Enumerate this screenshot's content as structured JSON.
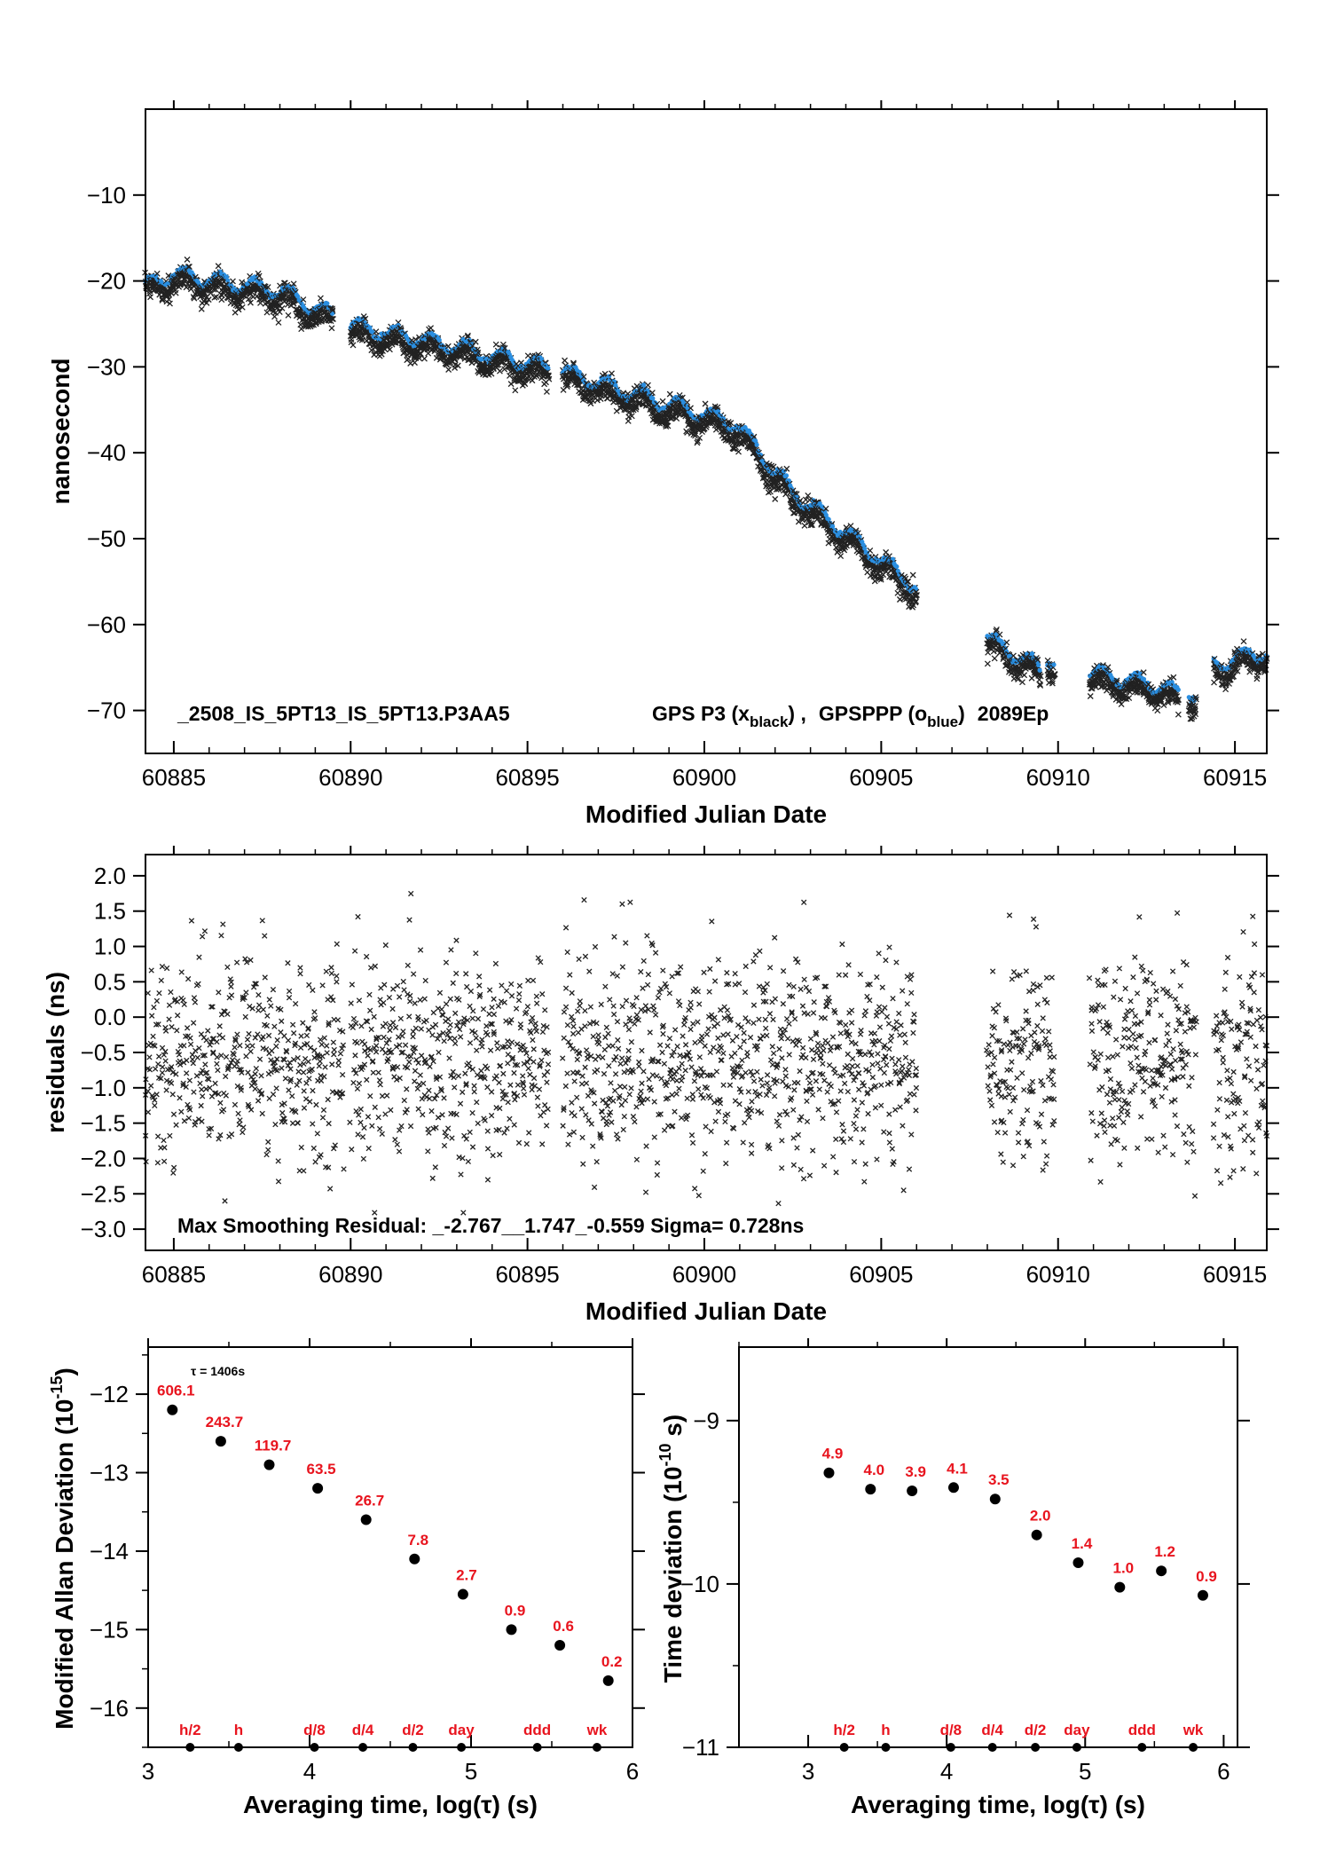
{
  "colors": {
    "black_series": "#222222",
    "blue_series": "#2a8ee0",
    "labels_red": "#e8141e",
    "axes": "#000000"
  },
  "chart_data": [
    {
      "id": "time-series",
      "type": "scatter",
      "xlabel": "Modified Julian Date",
      "ylabel": "nanosecond",
      "xlim": [
        60884.2,
        60915.9
      ],
      "ylim": [
        -75,
        0
      ],
      "xticks": [
        "60885",
        "60890",
        "60895",
        "60900",
        "60905",
        "60910",
        "60915"
      ],
      "xtick_values": [
        60885,
        60890,
        60895,
        60900,
        60905,
        60910,
        60915
      ],
      "yticks": [
        "−10",
        "−20",
        "−30",
        "−40",
        "−50",
        "−60",
        "−70"
      ],
      "ytick_values": [
        -10,
        -20,
        -30,
        -40,
        -50,
        -60,
        -70
      ],
      "annotation": {
        "name": "_2508_IS_5PT13_IS_5PT13.P3AA5",
        "series_a_prefix": "GPS P3 (x",
        "series_a_sub": "black",
        "series_a_suffix": ") ,",
        "series_b_prefix": "GPSPPP (o",
        "series_b_sub": "blue",
        "series_b_suffix": ")",
        "ep": "2089Ep"
      },
      "segments": [
        {
          "x": [
            60884.2,
            60885.0
          ],
          "y": [
            -21.0,
            -19.5
          ]
        },
        {
          "x": [
            60885.0,
            60888.0
          ],
          "y": [
            -19.5,
            -21.5
          ]
        },
        {
          "x": [
            60888.0,
            60889.5
          ],
          "y": [
            -21.5,
            -24.5
          ]
        },
        {
          "x": [
            60890.0,
            60893.0
          ],
          "y": [
            -25.5,
            -28.0
          ]
        },
        {
          "x": [
            60893.0,
            60895.6
          ],
          "y": [
            -28.0,
            -30.5
          ]
        },
        {
          "x": [
            60896.0,
            60900.9
          ],
          "y": [
            -31.0,
            -37.0
          ]
        },
        {
          "x": [
            60900.9,
            60902.5
          ],
          "y": [
            -37.0,
            -45.0
          ]
        },
        {
          "x": [
            60902.5,
            60906.0
          ],
          "y": [
            -45.0,
            -56.0
          ]
        },
        {
          "x": [
            60908.0,
            60909.5
          ],
          "y": [
            -62.0,
            -65.5
          ]
        },
        {
          "x": [
            60909.7,
            60909.9
          ],
          "y": [
            -64.0,
            -64.5
          ]
        },
        {
          "x": [
            60910.9,
            60912.9
          ],
          "y": [
            -66.0,
            -67.5
          ]
        },
        {
          "x": [
            60912.9,
            60913.4
          ],
          "y": [
            -67.5,
            -68.5
          ]
        },
        {
          "x": [
            60913.7,
            60913.9
          ],
          "y": [
            -68.0,
            -68.5
          ]
        },
        {
          "x": [
            60914.4,
            60915.9
          ],
          "y": [
            -65.0,
            -63.5
          ]
        }
      ]
    },
    {
      "id": "residuals",
      "type": "scatter",
      "xlabel": "Modified Julian Date",
      "ylabel": "residuals (ns)",
      "xlim": [
        60884.2,
        60915.9
      ],
      "ylim": [
        -3.3,
        2.3
      ],
      "xticks": [
        "60885",
        "60890",
        "60895",
        "60900",
        "60905",
        "60910",
        "60915"
      ],
      "xtick_values": [
        60885,
        60890,
        60895,
        60900,
        60905,
        60910,
        60915
      ],
      "yticks": [
        "2.0",
        "1.5",
        "1.0",
        "0.5",
        "0.0",
        "−0.5",
        "−1.0",
        "−1.5",
        "−2.0",
        "−2.5",
        "−3.0"
      ],
      "ytick_values": [
        2.0,
        1.5,
        1.0,
        0.5,
        0.0,
        -0.5,
        -1.0,
        -1.5,
        -2.0,
        -2.5,
        -3.0
      ],
      "annotation": "Max Smoothing Residual: _-2.767__1.747_-0.559  Sigma= 0.728ns",
      "mean": -0.559,
      "sigma": 0.728,
      "min": -2.767,
      "max": 1.747,
      "segments_x": [
        [
          60884.2,
          60889.8
        ],
        [
          60890.0,
          60895.6
        ],
        [
          60896.0,
          60906.0
        ],
        [
          60908.0,
          60909.9
        ],
        [
          60910.9,
          60913.9
        ],
        [
          60914.4,
          60915.9
        ]
      ]
    },
    {
      "id": "mdev",
      "type": "scatter",
      "xlabel": "Averaging time, log(τ) (s)",
      "ylabel": "Modified Allan Deviation (10",
      "ylabel_sup": "-15",
      "ylabel_suffix": ")",
      "xlim": [
        3,
        6
      ],
      "ylim": [
        -16.5,
        -11.4
      ],
      "xticks": [
        "3",
        "4",
        "5",
        "6"
      ],
      "xtick_values": [
        3,
        4,
        5,
        6
      ],
      "yticks": [
        "−12",
        "−13",
        "−14",
        "−15",
        "−16"
      ],
      "ytick_values": [
        -12,
        -13,
        -14,
        -15,
        -16
      ],
      "tau_note": "τ = 1406s",
      "x": [
        3.15,
        3.45,
        3.75,
        4.05,
        4.35,
        4.65,
        4.95,
        5.25,
        5.55,
        5.85
      ],
      "y": [
        -12.2,
        -12.6,
        -12.9,
        -13.2,
        -13.6,
        -14.1,
        -14.55,
        -15.0,
        -15.2,
        -15.65
      ],
      "labels": [
        "606.1",
        "243.7",
        "119.7",
        "63.5",
        "26.7",
        "7.8",
        "2.7",
        "0.9",
        "0.6",
        "0.2"
      ],
      "markers": [
        {
          "label": "h/2",
          "x": 3.26
        },
        {
          "label": "h",
          "x": 3.56
        },
        {
          "label": "d/8",
          "x": 4.03
        },
        {
          "label": "d/4",
          "x": 4.33
        },
        {
          "label": "d/2",
          "x": 4.64
        },
        {
          "label": "day",
          "x": 4.94
        },
        {
          "label": "ddd",
          "x": 5.41
        },
        {
          "label": "wk",
          "x": 5.78
        }
      ]
    },
    {
      "id": "tdev",
      "type": "scatter",
      "xlabel": "Averaging time, log(τ) (s)",
      "ylabel": "Time deviation (10",
      "ylabel_sup": "-10",
      "ylabel_suffix": " s)",
      "xlim": [
        2.5,
        6.1
      ],
      "ylim": [
        -11,
        -8.55
      ],
      "xticks": [
        "3",
        "4",
        "5",
        "6"
      ],
      "xtick_values": [
        3,
        4,
        5,
        6
      ],
      "yticks": [
        "−9",
        "−10",
        "−11"
      ],
      "ytick_values": [
        -9,
        -10,
        -11
      ],
      "x": [
        3.15,
        3.45,
        3.75,
        4.05,
        4.35,
        4.65,
        4.95,
        5.25,
        5.55,
        5.85
      ],
      "y": [
        -9.32,
        -9.42,
        -9.43,
        -9.41,
        -9.48,
        -9.7,
        -9.87,
        -10.02,
        -9.92,
        -10.07
      ],
      "labels": [
        "4.9",
        "4.0",
        "3.9",
        "4.1",
        "3.5",
        "2.0",
        "1.4",
        "1.0",
        "1.2",
        "0.9"
      ],
      "markers": [
        {
          "label": "h/2",
          "x": 3.26
        },
        {
          "label": "h",
          "x": 3.56
        },
        {
          "label": "d/8",
          "x": 4.03
        },
        {
          "label": "d/4",
          "x": 4.33
        },
        {
          "label": "d/2",
          "x": 4.64
        },
        {
          "label": "day",
          "x": 4.94
        },
        {
          "label": "ddd",
          "x": 5.41
        },
        {
          "label": "wk",
          "x": 5.78
        }
      ]
    }
  ]
}
